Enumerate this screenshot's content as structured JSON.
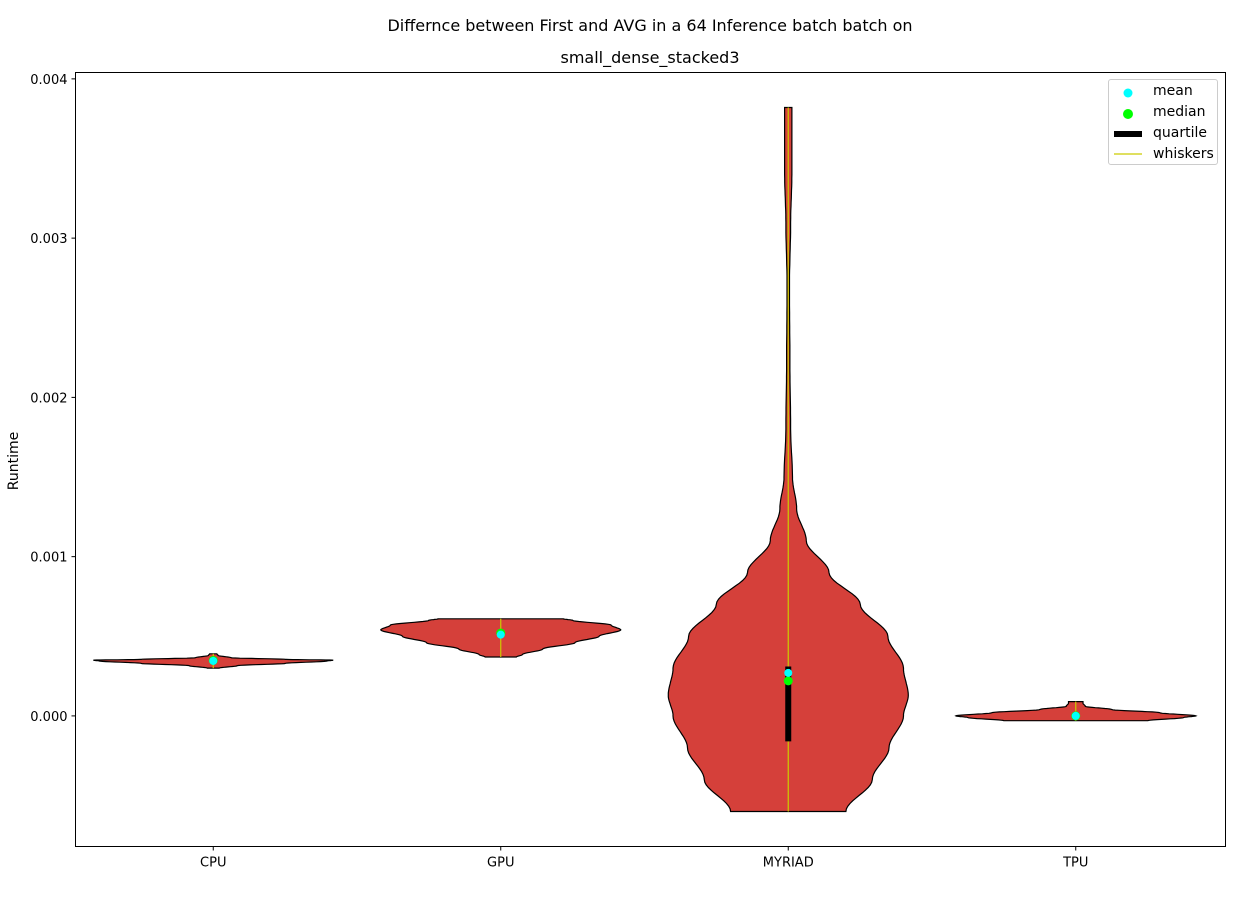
{
  "chart_data": {
    "type": "violin",
    "title": "Differnce between First and AVG in a 64 Inference batch batch on",
    "subtitle": "small_dense_stacked3",
    "xlabel": "",
    "ylabel": "Runtime",
    "categories": [
      "CPU",
      "GPU",
      "MYRIAD",
      "TPU"
    ],
    "ylim": [
      -0.00082,
      0.00404
    ],
    "yticks": [
      0.0,
      0.001,
      0.002,
      0.003,
      0.004
    ],
    "ytick_labels": [
      "0.000",
      "0.001",
      "0.002",
      "0.003",
      "0.004"
    ],
    "grid": false,
    "legend_position": "top-right",
    "colors": {
      "body": "#d5403a",
      "edge": "#000000",
      "mean": "#00ffff",
      "median": "#00ff00",
      "quartile": "#000000",
      "whiskers": "#cccc00"
    },
    "series": [
      {
        "category": "CPU",
        "min": 0.0003,
        "max": 0.00039,
        "mean": 0.000345,
        "median": 0.000348,
        "q1": 0.00034,
        "q3": 0.000352,
        "profile": [
          [
            0.0003,
            0.05
          ],
          [
            0.000315,
            0.2
          ],
          [
            0.00033,
            0.6
          ],
          [
            0.000345,
            0.95
          ],
          [
            0.00035,
            1.0
          ],
          [
            0.000355,
            0.6
          ],
          [
            0.000365,
            0.15
          ],
          [
            0.00038,
            0.04
          ],
          [
            0.00039,
            0.03
          ]
        ]
      },
      {
        "category": "GPU",
        "min": 0.00037,
        "max": 0.00061,
        "mean": 0.00051,
        "median": 0.00052,
        "q1": 0.000505,
        "q3": 0.000525,
        "profile": [
          [
            0.00037,
            0.13
          ],
          [
            0.000385,
            0.18
          ],
          [
            0.00042,
            0.35
          ],
          [
            0.00046,
            0.62
          ],
          [
            0.0005,
            0.82
          ],
          [
            0.00054,
            1.0
          ],
          [
            0.00057,
            0.92
          ],
          [
            0.0006,
            0.6
          ],
          [
            0.00061,
            0.52
          ]
        ]
      },
      {
        "category": "MYRIAD",
        "min": -0.0006,
        "max": 0.00382,
        "mean": 0.00027,
        "median": 0.00022,
        "q1": -0.00016,
        "q3": 0.00031,
        "profile": [
          [
            -0.0006,
            0.48
          ],
          [
            -0.0004,
            0.7
          ],
          [
            -0.0002,
            0.84
          ],
          [
            0.0,
            0.96
          ],
          [
            0.00013,
            1.0
          ],
          [
            0.0003,
            0.96
          ],
          [
            0.0005,
            0.83
          ],
          [
            0.0007,
            0.6
          ],
          [
            0.0009,
            0.34
          ],
          [
            0.0011,
            0.15
          ],
          [
            0.0013,
            0.07
          ],
          [
            0.0015,
            0.035
          ],
          [
            0.0018,
            0.02
          ],
          [
            0.0022,
            0.014
          ],
          [
            0.0027,
            0.01
          ],
          [
            0.0031,
            0.02
          ],
          [
            0.0034,
            0.03
          ],
          [
            0.0036,
            0.03
          ],
          [
            0.00382,
            0.03
          ]
        ]
      },
      {
        "category": "TPU",
        "min": -3e-05,
        "max": 9e-05,
        "mean": 0.0,
        "median": 0.0,
        "q1": -1e-05,
        "q3": 1e-05,
        "profile": [
          [
            -3e-05,
            0.6
          ],
          [
            -1e-05,
            0.9
          ],
          [
            0.0,
            1.0
          ],
          [
            2e-05,
            0.7
          ],
          [
            4e-05,
            0.3
          ],
          [
            6e-05,
            0.08
          ],
          [
            8e-05,
            0.06
          ],
          [
            9e-05,
            0.06
          ]
        ]
      }
    ],
    "legend": [
      "mean",
      "median",
      "quartile",
      "whiskers"
    ]
  }
}
